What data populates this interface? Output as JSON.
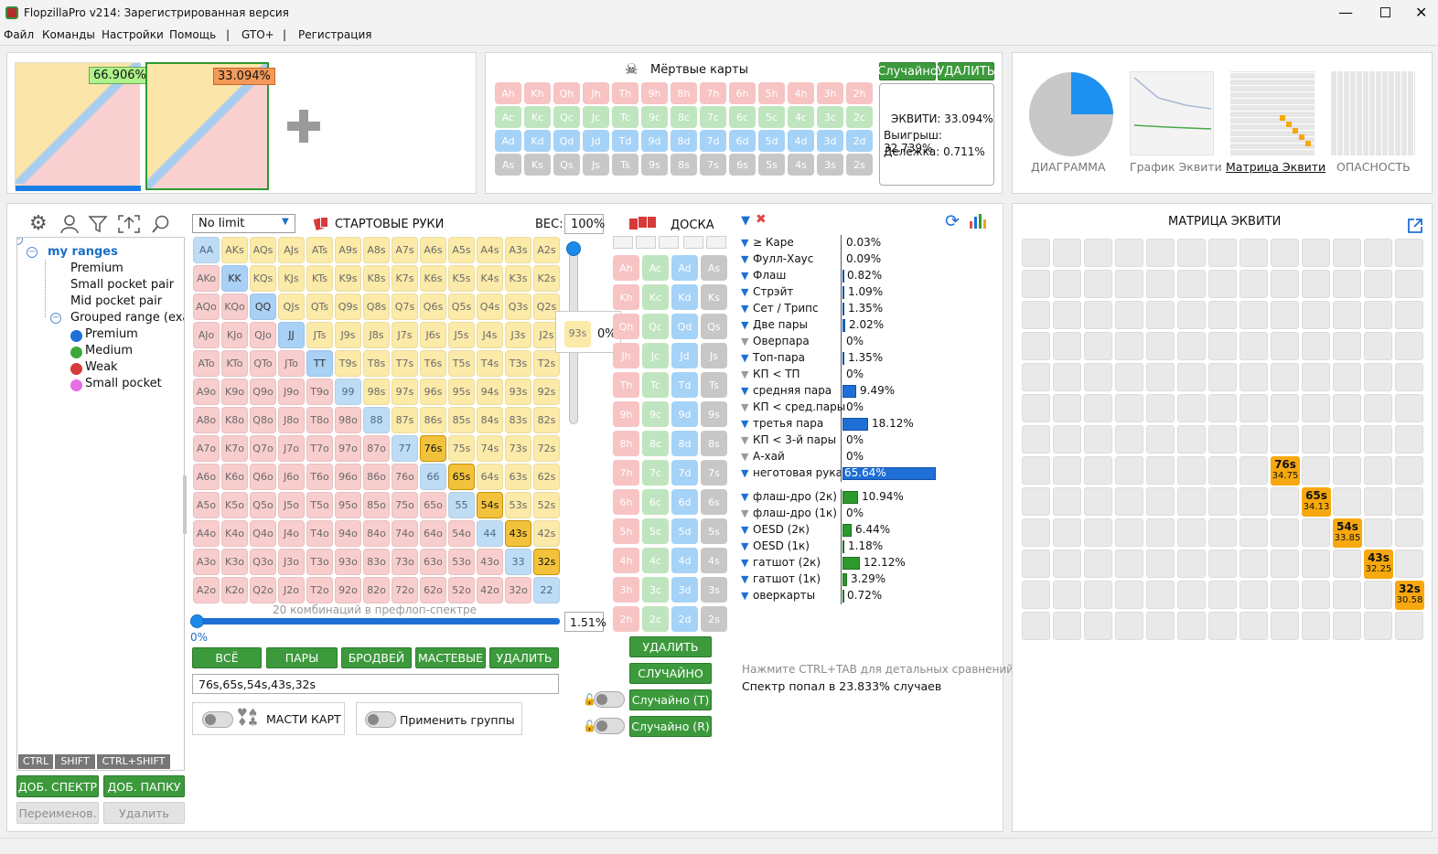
{
  "window": {
    "title": "FlopzillaPro v214: Зарегистрированная версия"
  },
  "menu": [
    "Файл",
    "Команды",
    "Настройки",
    "Помощь",
    "|",
    "GTO+",
    "|",
    "Регистрация"
  ],
  "top": {
    "range1_pct": "66.906%",
    "range2_pct": "33.094%",
    "dead_cards_title": "Мёртвые карты",
    "random_btn": "Случайно",
    "delete_btn": "УДАЛИТЬ",
    "card_rows": [
      [
        "Ah",
        "Kh",
        "Qh",
        "Jh",
        "Th",
        "9h",
        "8h",
        "7h",
        "6h",
        "5h",
        "4h",
        "3h",
        "2h"
      ],
      [
        "Ac",
        "Kc",
        "Qc",
        "Jc",
        "Tc",
        "9c",
        "8c",
        "7c",
        "6c",
        "5c",
        "4c",
        "3c",
        "2c"
      ],
      [
        "Ad",
        "Kd",
        "Qd",
        "Jd",
        "Td",
        "9d",
        "8d",
        "7d",
        "6d",
        "5d",
        "4d",
        "3d",
        "2d"
      ],
      [
        "As",
        "Ks",
        "Qs",
        "Js",
        "Ts",
        "9s",
        "8s",
        "7s",
        "6s",
        "5s",
        "4s",
        "3s",
        "2s"
      ]
    ],
    "equity_box": [
      "ЭКВИТИ: 33.094%",
      "Выигрыш: 32.739%",
      "Делёжка: 0.711%"
    ],
    "views": [
      "ДИАГРАММА",
      "График Эквити",
      "Матрица Эквити",
      "ОПАСНОСТЬ"
    ]
  },
  "left": {
    "tree_root": "my ranges",
    "tree_items": [
      "Premium",
      "Small pocket pair",
      "Mid pocket pair",
      "Grouped range (exar"
    ],
    "group_items": [
      {
        "label": "Premium",
        "color": "#1e6fd6"
      },
      {
        "label": "Medium",
        "color": "#3aa83a"
      },
      {
        "label": "Weak",
        "color": "#d63a3a"
      },
      {
        "label": "Small pocket",
        "color": "#e86ee8"
      }
    ],
    "mods": [
      "CTRL",
      "SHIFT",
      "CTRL+SHIFT"
    ],
    "add_range": "ДОБ. СПЕКТР",
    "add_folder": "ДОБ. ПАПКУ",
    "rename": "Переименов.",
    "delete": "Удалить"
  },
  "hands": {
    "game_select": "No limit",
    "title": "СТАРТОВЫЕ РУКИ",
    "weight_label": "ВЕС:",
    "weight_value": "100%",
    "ranks": [
      "A",
      "K",
      "Q",
      "J",
      "T",
      "9",
      "8",
      "7",
      "6",
      "5",
      "4",
      "3",
      "2"
    ],
    "selected": [
      "76s",
      "65s",
      "54s",
      "43s",
      "32s"
    ],
    "tooltip_hand": "93s",
    "tooltip_pct": "0%",
    "combos_text": "20 комбинаций в префлоп-спектре",
    "slider_left": "0%",
    "slider_right": "1.51%",
    "buttons": [
      "ВСЁ",
      "ПАРЫ",
      "БРОДВЕЙ",
      "МАСТЕВЫЕ",
      "УДАЛИТЬ"
    ],
    "range_text": "76s,65s,54s,43s,32s",
    "toggle1": "МАСТИ КАРТ",
    "toggle2": "Применить группы"
  },
  "board": {
    "title": "ДОСКА",
    "ranks": [
      "A",
      "K",
      "Q",
      "J",
      "T",
      "9",
      "8",
      "7",
      "6",
      "5",
      "4",
      "3",
      "2"
    ],
    "suits": [
      "h",
      "c",
      "d",
      "s"
    ],
    "delete_btn": "УДАЛИТЬ",
    "random_btn": "СЛУЧАЙНО",
    "random_t": "Случайно (T)",
    "random_r": "Случайно (R)"
  },
  "stats": {
    "made": [
      {
        "label": "≥ Каре",
        "value": "0.03%",
        "pct": 0.03,
        "color": "#1e6fd6"
      },
      {
        "label": "Фулл-Хаус",
        "value": "0.09%",
        "pct": 0.09,
        "color": "#1e6fd6"
      },
      {
        "label": "Флаш",
        "value": "0.82%",
        "pct": 0.82,
        "color": "#1e6fd6"
      },
      {
        "label": "Стрэйт",
        "value": "1.09%",
        "pct": 1.09,
        "color": "#1e6fd6"
      },
      {
        "label": "Сет / Трипс",
        "value": "1.35%",
        "pct": 1.35,
        "color": "#1e6fd6"
      },
      {
        "label": "Две пары",
        "value": "2.02%",
        "pct": 2.02,
        "color": "#1e6fd6"
      },
      {
        "label": "Оверпара",
        "value": "0%",
        "pct": 0,
        "color": "#1e6fd6"
      },
      {
        "label": "Топ-пара",
        "value": "1.35%",
        "pct": 1.35,
        "color": "#1e6fd6"
      },
      {
        "label": "КП < ТП",
        "value": "0%",
        "pct": 0,
        "color": "#1e6fd6"
      },
      {
        "label": "средняя пара",
        "value": "9.49%",
        "pct": 9.49,
        "color": "#1e6fd6"
      },
      {
        "label": "КП < сред.пары",
        "value": "0%",
        "pct": 0,
        "color": "#1e6fd6"
      },
      {
        "label": "третья пара",
        "value": "18.12%",
        "pct": 18.12,
        "color": "#1e6fd6"
      },
      {
        "label": "КП < 3-й пары",
        "value": "0%",
        "pct": 0,
        "color": "#1e6fd6"
      },
      {
        "label": "А-хай",
        "value": "0%",
        "pct": 0,
        "color": "#1e6fd6"
      },
      {
        "label": "неготовая рука",
        "value": "65.64%",
        "pct": 65.64,
        "color": "#1e6fd6"
      }
    ],
    "draws": [
      {
        "label": "флаш-дро (2к)",
        "value": "10.94%",
        "pct": 10.94,
        "color": "#2c9a2c"
      },
      {
        "label": "флаш-дро (1к)",
        "value": "0%",
        "pct": 0,
        "color": "#2c9a2c"
      },
      {
        "label": "OESD (2к)",
        "value": "6.44%",
        "pct": 6.44,
        "color": "#2c9a2c"
      },
      {
        "label": "OESD (1к)",
        "value": "1.18%",
        "pct": 1.18,
        "color": "#2c9a2c"
      },
      {
        "label": "гатшот (2к)",
        "value": "12.12%",
        "pct": 12.12,
        "color": "#2c9a2c"
      },
      {
        "label": "гатшот (1к)",
        "value": "3.29%",
        "pct": 3.29,
        "color": "#2c9a2c"
      },
      {
        "label": "оверкарты",
        "value": "0.72%",
        "pct": 0.72,
        "color": "#2c9a2c"
      }
    ],
    "hint": "Нажмите CTRL+TAB для детальных сравнений",
    "hit": "Спектр попал в 23.833% случаев"
  },
  "matrix": {
    "title": "МАТРИЦА ЭКВИТИ",
    "highlights": [
      {
        "hand": "76s",
        "eq": "34.75"
      },
      {
        "hand": "65s",
        "eq": "34.13"
      },
      {
        "hand": "54s",
        "eq": "33.85"
      },
      {
        "hand": "43s",
        "eq": "32.25"
      },
      {
        "hand": "32s",
        "eq": "30.58"
      }
    ]
  }
}
